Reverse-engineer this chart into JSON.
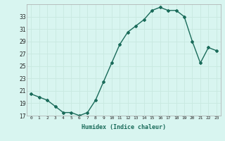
{
  "x": [
    0,
    1,
    2,
    3,
    4,
    5,
    6,
    7,
    8,
    9,
    10,
    11,
    12,
    13,
    14,
    15,
    16,
    17,
    18,
    19,
    20,
    21,
    22,
    23
  ],
  "y": [
    20.5,
    20.0,
    19.5,
    18.5,
    17.5,
    17.5,
    17.0,
    17.5,
    19.5,
    22.5,
    25.5,
    28.5,
    30.5,
    31.5,
    32.5,
    34.0,
    34.5,
    34.0,
    34.0,
    33.0,
    29.0,
    25.5,
    28.0,
    27.5
  ],
  "xlabel": "Humidex (Indice chaleur)",
  "ylim": [
    17,
    35
  ],
  "yticks": [
    17,
    19,
    21,
    23,
    25,
    27,
    29,
    31,
    33
  ],
  "xticks": [
    0,
    1,
    2,
    3,
    4,
    5,
    6,
    7,
    8,
    9,
    10,
    11,
    12,
    13,
    14,
    15,
    16,
    17,
    18,
    19,
    20,
    21,
    22,
    23
  ],
  "line_color": "#1a6b5a",
  "bg_color": "#d8f5f0",
  "grid_color": "#c8e8e0"
}
